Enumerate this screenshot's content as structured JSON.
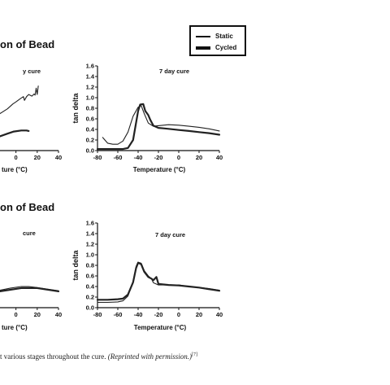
{
  "page": {
    "title_top": "on of Bead",
    "title_bottom": "on of Bead",
    "caption_text": "t various stages throughout the cure. ",
    "caption_italic": "(Reprinted with permission.)",
    "caption_ref": "[7]"
  },
  "legend": {
    "items": [
      {
        "label": "Static",
        "style": "thin"
      },
      {
        "label": "Cycled",
        "style": "thick"
      }
    ]
  },
  "chart_data": [
    {
      "type": "line",
      "title": "y cure",
      "xlabel": "ture (°C)",
      "ylabel": "",
      "xlim": [
        -15,
        40
      ],
      "x_ticks": [
        0,
        20,
        40
      ],
      "x_tick_labels": [
        "0",
        "20",
        "40"
      ],
      "series": [
        {
          "name": "Static",
          "stroke": "thin",
          "x": [
            -15,
            -8,
            -3,
            0,
            4,
            7,
            8,
            10,
            12,
            15,
            17,
            18,
            19,
            20,
            21
          ],
          "y": [
            0.7,
            0.79,
            0.88,
            0.92,
            0.98,
            1.02,
            0.95,
            1.02,
            1.06,
            1.03,
            1.07,
            1.05,
            1.18,
            1.06,
            1.22
          ]
        },
        {
          "name": "Cycled",
          "stroke": "thick",
          "x": [
            -15,
            -8,
            -2,
            5,
            10,
            12
          ],
          "y": [
            0.27,
            0.32,
            0.36,
            0.38,
            0.38,
            0.37
          ]
        }
      ]
    },
    {
      "type": "line",
      "title": "7 day cure",
      "xlabel": "Temperature (°C)",
      "ylabel": "tan delta",
      "xlim": [
        -80,
        40
      ],
      "ylim": [
        0,
        1.6
      ],
      "x_ticks": [
        -80,
        -60,
        -40,
        -20,
        0,
        20,
        40
      ],
      "y_ticks": [
        0,
        0.2,
        0.4,
        0.6,
        0.8,
        1.0,
        1.2,
        1.4,
        1.6
      ],
      "x_tick_labels": [
        "-80",
        "-60",
        "-40",
        "-20",
        "0",
        "20",
        "40"
      ],
      "y_tick_labels": [
        "0.0",
        "0.2",
        "0.4",
        "0.6",
        "0.8",
        "1.0",
        "1.2",
        "1.4",
        "1.6"
      ],
      "series": [
        {
          "name": "Static",
          "stroke": "thin",
          "x": [
            -75,
            -70,
            -65,
            -60,
            -55,
            -50,
            -45,
            -40,
            -37,
            -34,
            -30,
            -25,
            -20,
            -10,
            0,
            10,
            20,
            30,
            40
          ],
          "y": [
            0.25,
            0.14,
            0.12,
            0.12,
            0.18,
            0.35,
            0.65,
            0.82,
            0.85,
            0.7,
            0.52,
            0.46,
            0.47,
            0.49,
            0.48,
            0.46,
            0.44,
            0.41,
            0.37
          ]
        },
        {
          "name": "Cycled",
          "stroke": "thick",
          "x": [
            -80,
            -70,
            -60,
            -55,
            -50,
            -45,
            -40,
            -38,
            -35,
            -33,
            -30,
            -28,
            -25,
            -20,
            -15,
            -10,
            0,
            10,
            20,
            30,
            40
          ],
          "y": [
            0.03,
            0.03,
            0.03,
            0.03,
            0.05,
            0.2,
            0.75,
            0.87,
            0.88,
            0.75,
            0.67,
            0.58,
            0.47,
            0.43,
            0.42,
            0.41,
            0.39,
            0.37,
            0.35,
            0.33,
            0.3
          ]
        }
      ]
    },
    {
      "type": "line",
      "title": "cure",
      "xlabel": "ture (°C)",
      "ylabel": "",
      "xlim": [
        -15,
        40
      ],
      "x_ticks": [
        0,
        20,
        40
      ],
      "x_tick_labels": [
        "0",
        "20",
        "40"
      ],
      "series": [
        {
          "name": "Static",
          "stroke": "thin",
          "x": [
            -15,
            -5,
            5,
            12,
            20,
            30,
            40
          ],
          "y": [
            0.33,
            0.37,
            0.4,
            0.4,
            0.38,
            0.35,
            0.32
          ]
        },
        {
          "name": "Cycled",
          "stroke": "thick",
          "x": [
            -15,
            -5,
            5,
            12,
            20,
            30,
            40
          ],
          "y": [
            0.31,
            0.34,
            0.37,
            0.37,
            0.37,
            0.34,
            0.31
          ]
        }
      ]
    },
    {
      "type": "line",
      "title": "7 day cure",
      "xlabel": "Temperature (°C)",
      "ylabel": "tan delta",
      "xlim": [
        -80,
        40
      ],
      "ylim": [
        0,
        1.6
      ],
      "x_ticks": [
        -80,
        -60,
        -40,
        -20,
        0,
        20,
        40
      ],
      "y_ticks": [
        0,
        0.2,
        0.4,
        0.6,
        0.8,
        1.0,
        1.2,
        1.4,
        1.6
      ],
      "x_tick_labels": [
        "-80",
        "-60",
        "-40",
        "-20",
        "0",
        "20",
        "40"
      ],
      "y_tick_labels": [
        "0.0",
        "0.2",
        "0.4",
        "0.6",
        "0.8",
        "1.0",
        "1.2",
        "1.4",
        "1.6"
      ],
      "series": [
        {
          "name": "Static",
          "stroke": "thin",
          "x": [
            -80,
            -70,
            -60,
            -55,
            -50,
            -45,
            -42,
            -40,
            -37,
            -34,
            -30,
            -27,
            -25,
            -20,
            -10,
            0,
            10,
            20,
            30,
            40
          ],
          "y": [
            0.1,
            0.1,
            0.11,
            0.13,
            0.22,
            0.5,
            0.78,
            0.86,
            0.84,
            0.7,
            0.6,
            0.55,
            0.47,
            0.43,
            0.43,
            0.43,
            0.4,
            0.38,
            0.36,
            0.33
          ]
        },
        {
          "name": "Cycled",
          "stroke": "thick",
          "x": [
            -80,
            -70,
            -60,
            -55,
            -50,
            -45,
            -42,
            -40,
            -37,
            -34,
            -30,
            -27,
            -25,
            -22,
            -20,
            -10,
            0,
            10,
            20,
            30,
            40
          ],
          "y": [
            0.15,
            0.15,
            0.16,
            0.17,
            0.25,
            0.48,
            0.75,
            0.85,
            0.82,
            0.68,
            0.58,
            0.55,
            0.52,
            0.58,
            0.45,
            0.43,
            0.42,
            0.4,
            0.38,
            0.35,
            0.32
          ]
        }
      ]
    }
  ]
}
